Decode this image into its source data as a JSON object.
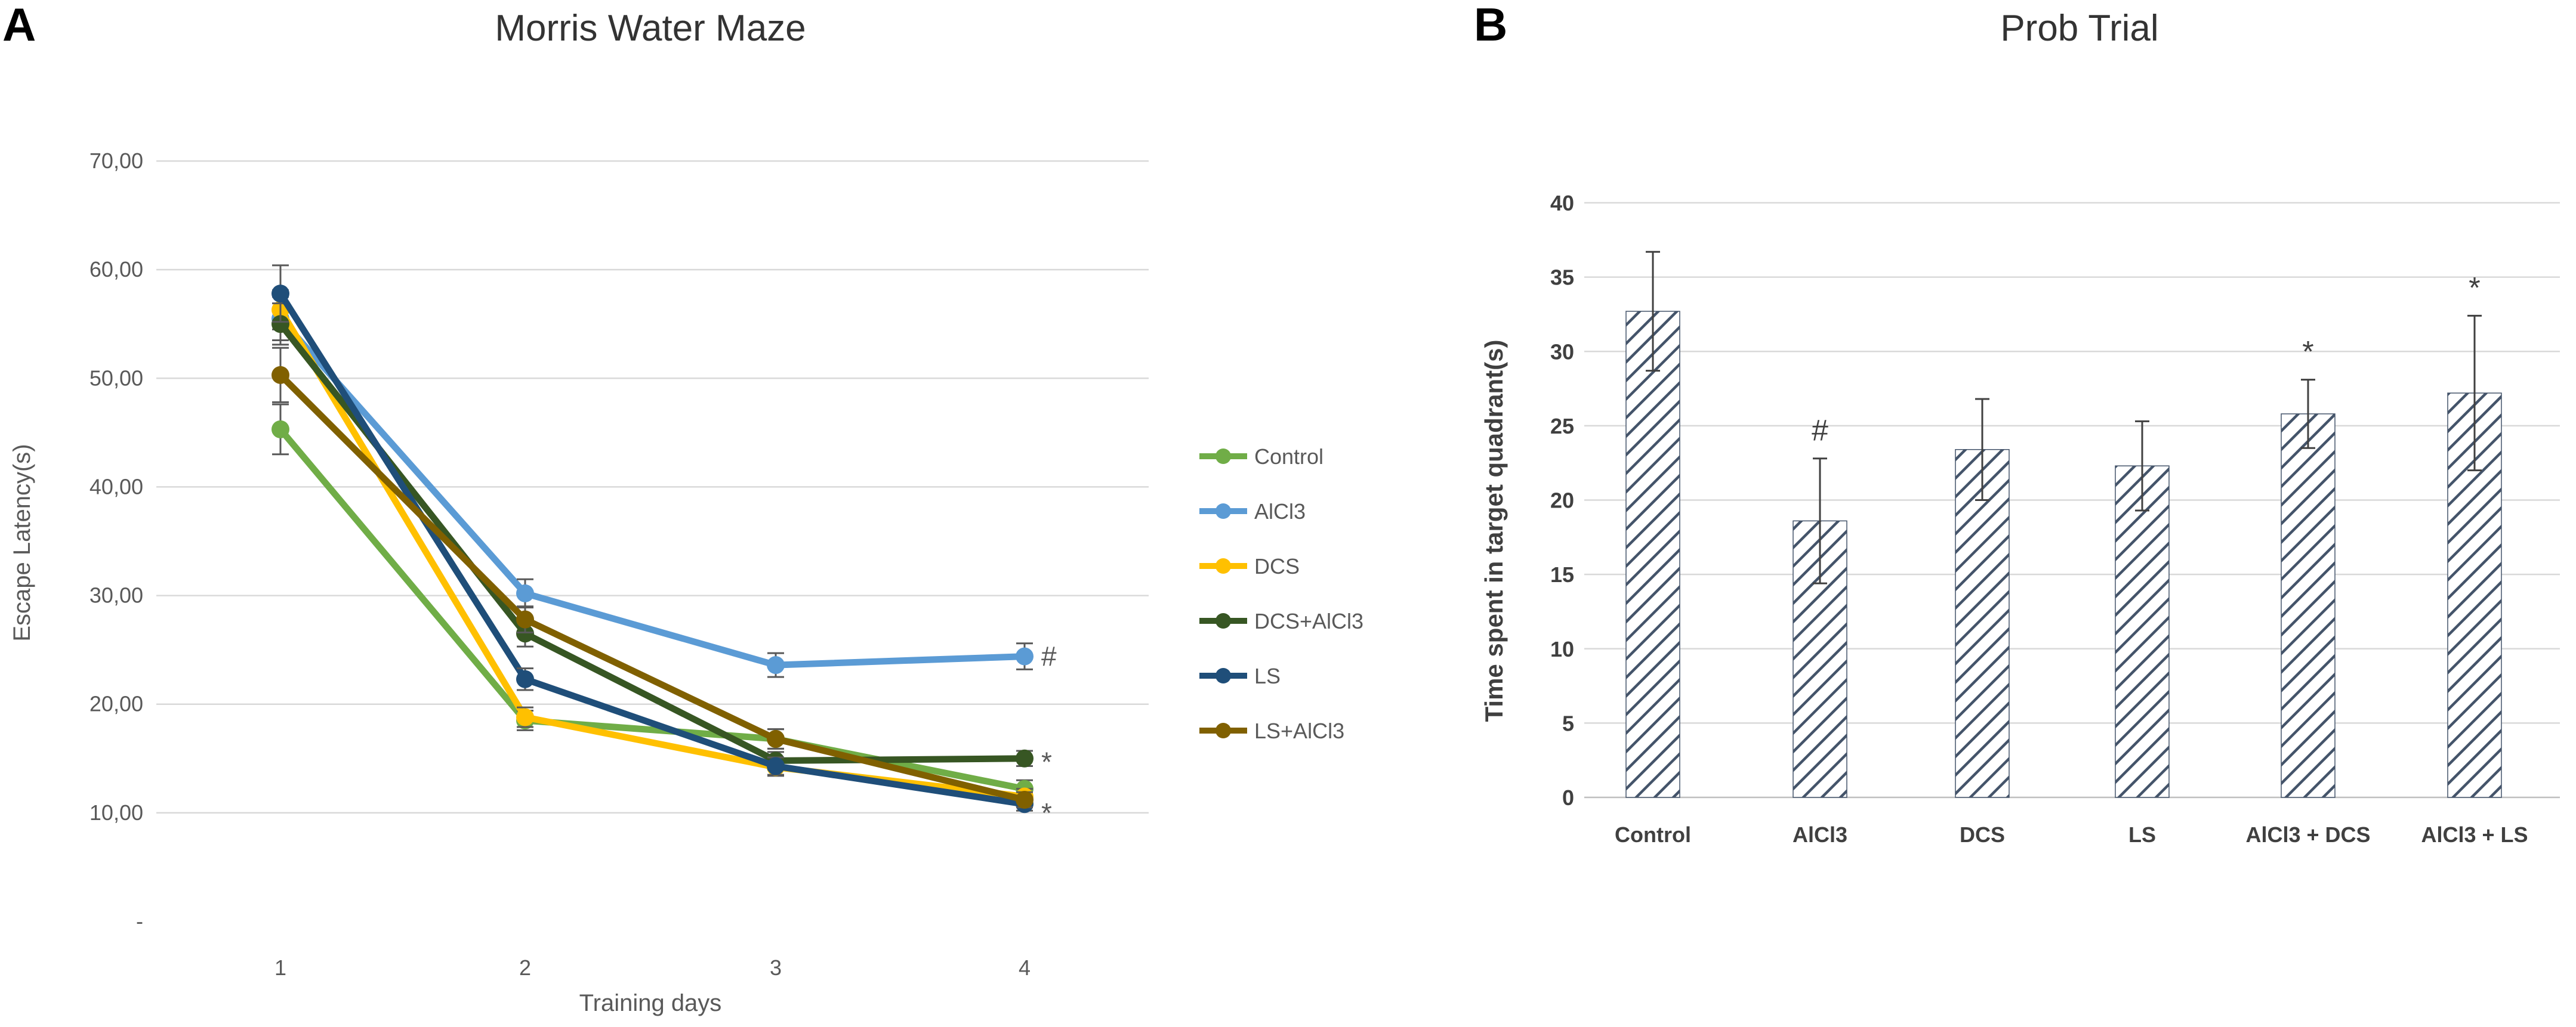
{
  "chart_data": [
    {
      "type": "line",
      "panel_label": "A",
      "title": "Morris Water Maze",
      "xlabel": "Training days",
      "ylabel": "Escape Latency(s)",
      "x": [
        1,
        2,
        3,
        4
      ],
      "x_tick_labels": [
        "1",
        "2",
        "3",
        "4"
      ],
      "ylim": [
        0,
        70
      ],
      "y_ticks": [
        0,
        10,
        20,
        30,
        40,
        50,
        60,
        70
      ],
      "y_tick_labels": [
        "-",
        "10,00",
        "20,00",
        "30,00",
        "40,00",
        "50,00",
        "60,00",
        "70,00"
      ],
      "grid": true,
      "legend_position": "right",
      "series": [
        {
          "name": "Control",
          "color": "#70ad47",
          "values": [
            45.3,
            18.5,
            16.8,
            12.2
          ],
          "errors": [
            2.3,
            0.9,
            0.9,
            0.8
          ]
        },
        {
          "name": "AlCl3",
          "color": "#5b9bd5",
          "values": [
            55.5,
            30.2,
            23.6,
            24.4
          ],
          "errors": [
            2.0,
            1.3,
            1.1,
            1.2
          ]
        },
        {
          "name": "DCS",
          "color": "#ffc000",
          "values": [
            56.3,
            18.8,
            14.2,
            11.5
          ],
          "errors": [
            1.8,
            0.9,
            0.8,
            0.7
          ]
        },
        {
          "name": "DCS+AlCl3",
          "color": "#375623",
          "values": [
            55.0,
            26.5,
            14.8,
            15.0
          ],
          "errors": [
            1.9,
            1.2,
            0.8,
            0.7
          ]
        },
        {
          "name": "LS",
          "color": "#1f4e79",
          "values": [
            57.8,
            22.3,
            14.3,
            10.8
          ],
          "errors": [
            2.6,
            1.0,
            0.8,
            0.6
          ]
        },
        {
          "name": "LS+AlCl3",
          "color": "#806000",
          "values": [
            50.3,
            27.8,
            16.8,
            11.2
          ],
          "errors": [
            2.5,
            1.2,
            0.9,
            0.7
          ]
        }
      ],
      "annotations": [
        {
          "text": "#",
          "x": 4,
          "y": 24.4
        },
        {
          "text": "*",
          "x": 4,
          "y": 14.7
        },
        {
          "text": "*",
          "x": 4,
          "y": 10.0
        }
      ]
    },
    {
      "type": "bar",
      "panel_label": "B",
      "title": "Prob Trial",
      "xlabel": "",
      "ylabel": "Time spent in target quadrant(s)",
      "categories": [
        "Control",
        "AlCl3",
        "DCS",
        "LS",
        "AlCl3 + DCS",
        "AlCl3 + LS"
      ],
      "values": [
        32.7,
        18.6,
        23.4,
        22.3,
        25.8,
        27.2
      ],
      "errors": [
        4.0,
        4.2,
        3.4,
        3.0,
        2.3,
        5.2
      ],
      "ylim": [
        0,
        40
      ],
      "y_ticks": [
        0,
        5,
        10,
        15,
        20,
        25,
        30,
        35,
        40
      ],
      "y_tick_labels": [
        "0",
        "5",
        "10",
        "15",
        "20",
        "25",
        "30",
        "35",
        "40"
      ],
      "grid": true,
      "bar_fill": "hatched",
      "bar_color": "#44546a",
      "annotations": [
        {
          "text": "#",
          "category": "AlCl3"
        },
        {
          "text": "*",
          "category": "AlCl3 + DCS"
        },
        {
          "text": "*",
          "category": "AlCl3 + LS"
        }
      ]
    }
  ]
}
